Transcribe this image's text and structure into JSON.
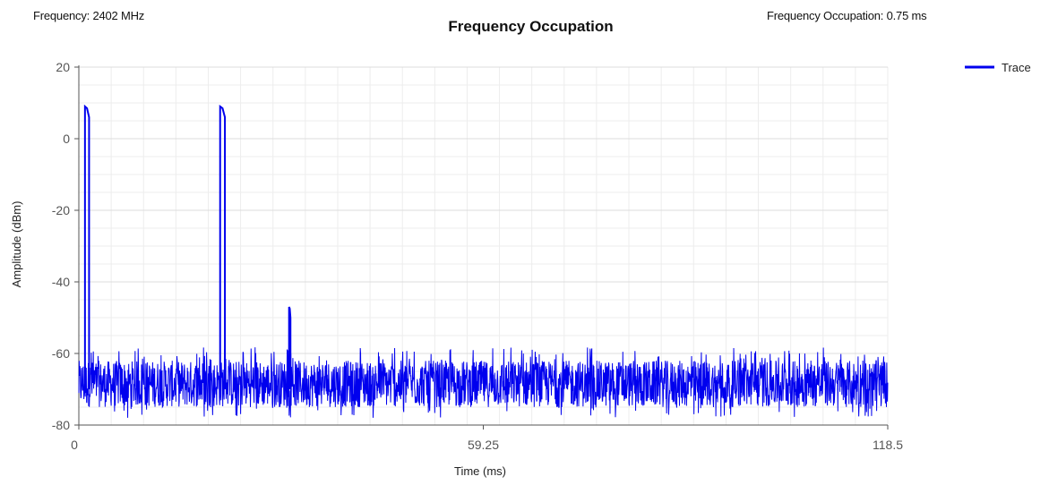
{
  "header": {
    "frequency_text": "Frequency: 2402 MHz",
    "occupation_text": "Frequency Occupation: 0.75 ms"
  },
  "chart_data": {
    "type": "line",
    "title": "Frequency Occupation",
    "xlabel": "Time (ms)",
    "ylabel": "Amplitude (dBm)",
    "xlim": [
      0,
      118.5
    ],
    "ylim": [
      -80,
      20
    ],
    "x_ticks": [
      0,
      59.25,
      118.5
    ],
    "x_tick_labels": [
      "0",
      "59.25",
      "118.5"
    ],
    "y_ticks": [
      20,
      0,
      -20,
      -40,
      -60,
      -80
    ],
    "y_tick_labels": [
      "20",
      "0",
      "-20",
      "-40",
      "-60",
      "-80"
    ],
    "grid": true,
    "legend_position": "top-right",
    "series": [
      {
        "name": "Trace",
        "color": "#0000ee",
        "noise_floor_dbm": [
          -75,
          -62
        ],
        "peaks": [
          {
            "start_ms": 0.9,
            "end_ms": 1.5,
            "amplitude_dbm": 9
          },
          {
            "start_ms": 20.7,
            "end_ms": 21.4,
            "amplitude_dbm": 9
          },
          {
            "start_ms": 30.8,
            "end_ms": 31.0,
            "amplitude_dbm": -47
          }
        ]
      }
    ]
  }
}
